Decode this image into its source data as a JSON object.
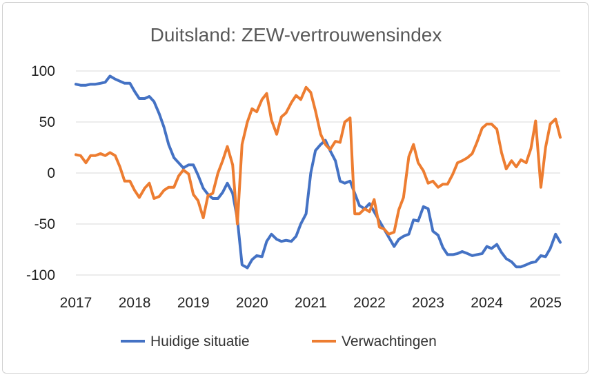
{
  "chart_data": {
    "type": "line",
    "title": "Duitsland: ZEW-vertrouwensindex",
    "xlabel": "",
    "ylabel": "",
    "xlim": [
      2017.0,
      2025.25
    ],
    "ylim": [
      -100,
      100
    ],
    "x_ticks": [
      "2017",
      "2018",
      "2019",
      "2020",
      "2021",
      "2022",
      "2023",
      "2024",
      "2025"
    ],
    "y_ticks": [
      "100",
      "50",
      "0",
      "-50",
      "-100"
    ],
    "grid": "horizontal",
    "legend_position": "bottom",
    "series": [
      {
        "name": "Huidige situatie",
        "color": "#4472C4",
        "points": [
          [
            2017.0,
            87
          ],
          [
            2017.08,
            86
          ],
          [
            2017.17,
            86
          ],
          [
            2017.25,
            87
          ],
          [
            2017.33,
            87
          ],
          [
            2017.42,
            88
          ],
          [
            2017.5,
            89
          ],
          [
            2017.58,
            95
          ],
          [
            2017.67,
            92
          ],
          [
            2017.75,
            90
          ],
          [
            2017.83,
            88
          ],
          [
            2017.92,
            88
          ],
          [
            2018.0,
            80
          ],
          [
            2018.08,
            73
          ],
          [
            2018.17,
            73
          ],
          [
            2018.25,
            75
          ],
          [
            2018.33,
            70
          ],
          [
            2018.42,
            58
          ],
          [
            2018.5,
            45
          ],
          [
            2018.58,
            28
          ],
          [
            2018.67,
            15
          ],
          [
            2018.75,
            10
          ],
          [
            2018.83,
            5
          ],
          [
            2018.92,
            8
          ],
          [
            2019.0,
            8
          ],
          [
            2019.08,
            -2
          ],
          [
            2019.17,
            -15
          ],
          [
            2019.25,
            -21
          ],
          [
            2019.33,
            -25
          ],
          [
            2019.42,
            -25
          ],
          [
            2019.5,
            -19
          ],
          [
            2019.58,
            -10
          ],
          [
            2019.67,
            -20
          ],
          [
            2019.75,
            -45
          ],
          [
            2019.83,
            -90
          ],
          [
            2019.92,
            -93
          ],
          [
            2020.0,
            -85
          ],
          [
            2020.08,
            -81
          ],
          [
            2020.17,
            -82
          ],
          [
            2020.25,
            -67
          ],
          [
            2020.33,
            -60
          ],
          [
            2020.42,
            -65
          ],
          [
            2020.5,
            -67
          ],
          [
            2020.58,
            -66
          ],
          [
            2020.67,
            -67
          ],
          [
            2020.75,
            -62
          ],
          [
            2020.83,
            -50
          ],
          [
            2020.92,
            -40
          ],
          [
            2021.0,
            0
          ],
          [
            2021.08,
            22
          ],
          [
            2021.17,
            28
          ],
          [
            2021.25,
            32
          ],
          [
            2021.33,
            22
          ],
          [
            2021.42,
            12
          ],
          [
            2021.5,
            -8
          ],
          [
            2021.58,
            -10
          ],
          [
            2021.67,
            -8
          ],
          [
            2021.75,
            -20
          ],
          [
            2021.83,
            -32
          ],
          [
            2021.92,
            -35
          ],
          [
            2022.0,
            -30
          ],
          [
            2022.08,
            -38
          ],
          [
            2022.17,
            -47
          ],
          [
            2022.25,
            -55
          ],
          [
            2022.33,
            -63
          ],
          [
            2022.42,
            -72
          ],
          [
            2022.5,
            -65
          ],
          [
            2022.58,
            -62
          ],
          [
            2022.67,
            -60
          ],
          [
            2022.75,
            -46
          ],
          [
            2022.83,
            -47
          ],
          [
            2022.92,
            -33
          ],
          [
            2023.0,
            -35
          ],
          [
            2023.08,
            -57
          ],
          [
            2023.17,
            -61
          ],
          [
            2023.25,
            -73
          ],
          [
            2023.33,
            -80
          ],
          [
            2023.42,
            -80
          ],
          [
            2023.5,
            -79
          ],
          [
            2023.58,
            -77
          ],
          [
            2023.67,
            -79
          ],
          [
            2023.75,
            -81
          ],
          [
            2023.83,
            -80
          ],
          [
            2023.92,
            -79
          ],
          [
            2024.0,
            -72
          ],
          [
            2024.08,
            -74
          ],
          [
            2024.17,
            -70
          ],
          [
            2024.25,
            -78
          ],
          [
            2024.33,
            -84
          ],
          [
            2024.42,
            -87
          ],
          [
            2024.5,
            -92
          ],
          [
            2024.58,
            -92
          ],
          [
            2024.67,
            -90
          ],
          [
            2024.75,
            -88
          ],
          [
            2024.83,
            -87
          ],
          [
            2024.92,
            -81
          ],
          [
            2025.0,
            -82
          ],
          [
            2025.08,
            -74
          ],
          [
            2025.17,
            -60
          ],
          [
            2025.25,
            -68
          ]
        ]
      },
      {
        "name": "Verwachtingen",
        "color": "#ED7D31",
        "points": [
          [
            2017.0,
            18
          ],
          [
            2017.08,
            17
          ],
          [
            2017.17,
            10
          ],
          [
            2017.25,
            17
          ],
          [
            2017.33,
            17
          ],
          [
            2017.42,
            19
          ],
          [
            2017.5,
            17
          ],
          [
            2017.58,
            20
          ],
          [
            2017.67,
            17
          ],
          [
            2017.75,
            6
          ],
          [
            2017.83,
            -8
          ],
          [
            2017.92,
            -8
          ],
          [
            2018.0,
            -17
          ],
          [
            2018.08,
            -24
          ],
          [
            2018.17,
            -15
          ],
          [
            2018.25,
            -10
          ],
          [
            2018.33,
            -25
          ],
          [
            2018.42,
            -23
          ],
          [
            2018.5,
            -17
          ],
          [
            2018.58,
            -14
          ],
          [
            2018.67,
            -14
          ],
          [
            2018.75,
            -3
          ],
          [
            2018.83,
            3
          ],
          [
            2018.92,
            -1
          ],
          [
            2019.0,
            -21
          ],
          [
            2019.08,
            -27
          ],
          [
            2019.17,
            -44
          ],
          [
            2019.25,
            -22
          ],
          [
            2019.33,
            -20
          ],
          [
            2019.42,
            0
          ],
          [
            2019.5,
            12
          ],
          [
            2019.58,
            26
          ],
          [
            2019.67,
            8
          ],
          [
            2019.75,
            -50
          ],
          [
            2019.83,
            28
          ],
          [
            2019.92,
            50
          ],
          [
            2020.0,
            63
          ],
          [
            2020.08,
            60
          ],
          [
            2020.17,
            72
          ],
          [
            2020.25,
            78
          ],
          [
            2020.33,
            52
          ],
          [
            2020.42,
            38
          ],
          [
            2020.5,
            55
          ],
          [
            2020.58,
            59
          ],
          [
            2020.67,
            69
          ],
          [
            2020.75,
            76
          ],
          [
            2020.83,
            72
          ],
          [
            2020.92,
            84
          ],
          [
            2021.0,
            79
          ],
          [
            2021.08,
            61
          ],
          [
            2021.17,
            38
          ],
          [
            2021.25,
            28
          ],
          [
            2021.33,
            23
          ],
          [
            2021.42,
            31
          ],
          [
            2021.5,
            30
          ],
          [
            2021.58,
            50
          ],
          [
            2021.67,
            54
          ],
          [
            2021.75,
            -40
          ],
          [
            2021.83,
            -40
          ],
          [
            2021.92,
            -35
          ],
          [
            2022.0,
            -38
          ],
          [
            2022.08,
            -26
          ],
          [
            2022.17,
            -53
          ],
          [
            2022.25,
            -55
          ],
          [
            2022.33,
            -60
          ],
          [
            2022.42,
            -58
          ],
          [
            2022.5,
            -36
          ],
          [
            2022.58,
            -24
          ],
          [
            2022.67,
            16
          ],
          [
            2022.75,
            28
          ],
          [
            2022.83,
            10
          ],
          [
            2022.92,
            2
          ],
          [
            2023.0,
            -10
          ],
          [
            2023.08,
            -8
          ],
          [
            2023.17,
            -14
          ],
          [
            2023.25,
            -11
          ],
          [
            2023.33,
            -11
          ],
          [
            2023.42,
            -1
          ],
          [
            2023.5,
            10
          ],
          [
            2023.58,
            12
          ],
          [
            2023.67,
            15
          ],
          [
            2023.75,
            19
          ],
          [
            2023.83,
            30
          ],
          [
            2023.92,
            44
          ],
          [
            2024.0,
            48
          ],
          [
            2024.08,
            48
          ],
          [
            2024.17,
            43
          ],
          [
            2024.25,
            20
          ],
          [
            2024.33,
            4
          ],
          [
            2024.42,
            12
          ],
          [
            2024.5,
            6
          ],
          [
            2024.58,
            13
          ],
          [
            2024.67,
            10
          ],
          [
            2024.75,
            24
          ],
          [
            2024.83,
            51
          ],
          [
            2024.92,
            -14
          ],
          [
            2025.0,
            25
          ],
          [
            2025.08,
            48
          ],
          [
            2025.17,
            53
          ],
          [
            2025.25,
            35
          ]
        ]
      }
    ]
  }
}
